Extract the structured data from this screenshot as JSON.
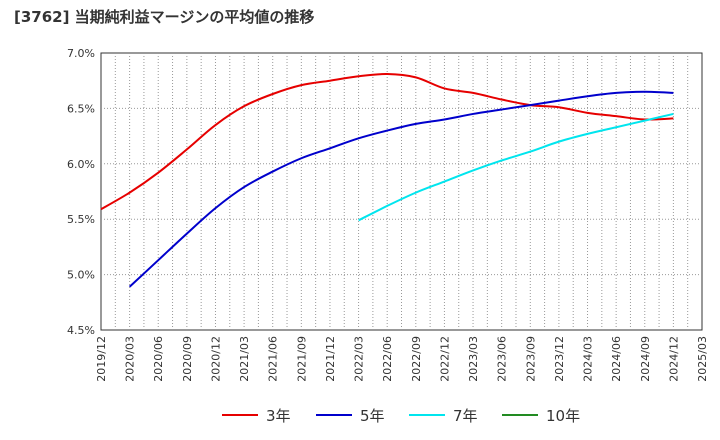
{
  "title": "[3762]  当期純利益マージンの平均値の推移",
  "chart_data": {
    "type": "line",
    "title": "[3762]  当期純利益マージンの平均値の推移",
    "xlabel": "",
    "ylabel": "",
    "x": [
      "2019/12",
      "2020/03",
      "2020/06",
      "2020/09",
      "2020/12",
      "2021/03",
      "2021/06",
      "2021/09",
      "2021/12",
      "2022/03",
      "2022/06",
      "2022/09",
      "2022/12",
      "2023/03",
      "2023/06",
      "2023/09",
      "2023/12",
      "2024/03",
      "2024/06",
      "2024/09",
      "2024/12",
      "2025/03"
    ],
    "y_ticks": [
      "4.5%",
      "5.0%",
      "5.5%",
      "6.0%",
      "6.5%",
      "7.0%"
    ],
    "ylim": [
      4.5,
      7.0
    ],
    "y_unit": "%",
    "grid": true,
    "legend_position": "bottom",
    "series": [
      {
        "name": "3年",
        "color": "#e60000",
        "values": [
          5.59,
          5.74,
          5.92,
          6.13,
          6.35,
          6.52,
          6.63,
          6.71,
          6.75,
          6.79,
          6.81,
          6.78,
          6.68,
          6.64,
          6.58,
          6.53,
          6.51,
          6.46,
          6.43,
          6.4,
          6.41,
          null
        ]
      },
      {
        "name": "5年",
        "color": "#0000cc",
        "values": [
          null,
          4.89,
          5.13,
          5.37,
          5.6,
          5.79,
          5.93,
          6.05,
          6.14,
          6.23,
          6.3,
          6.36,
          6.4,
          6.45,
          6.49,
          6.53,
          6.57,
          6.61,
          6.64,
          6.65,
          6.64,
          null
        ]
      },
      {
        "name": "7年",
        "color": "#00e5ee",
        "values": [
          null,
          null,
          null,
          null,
          null,
          null,
          null,
          null,
          null,
          5.49,
          5.62,
          5.74,
          5.84,
          5.94,
          6.03,
          6.11,
          6.2,
          6.27,
          6.33,
          6.39,
          6.45,
          null
        ]
      },
      {
        "name": "10年",
        "color": "#228b22",
        "values": [
          null,
          null,
          null,
          null,
          null,
          null,
          null,
          null,
          null,
          null,
          null,
          null,
          null,
          null,
          null,
          null,
          null,
          null,
          null,
          null,
          null,
          null
        ]
      }
    ]
  }
}
